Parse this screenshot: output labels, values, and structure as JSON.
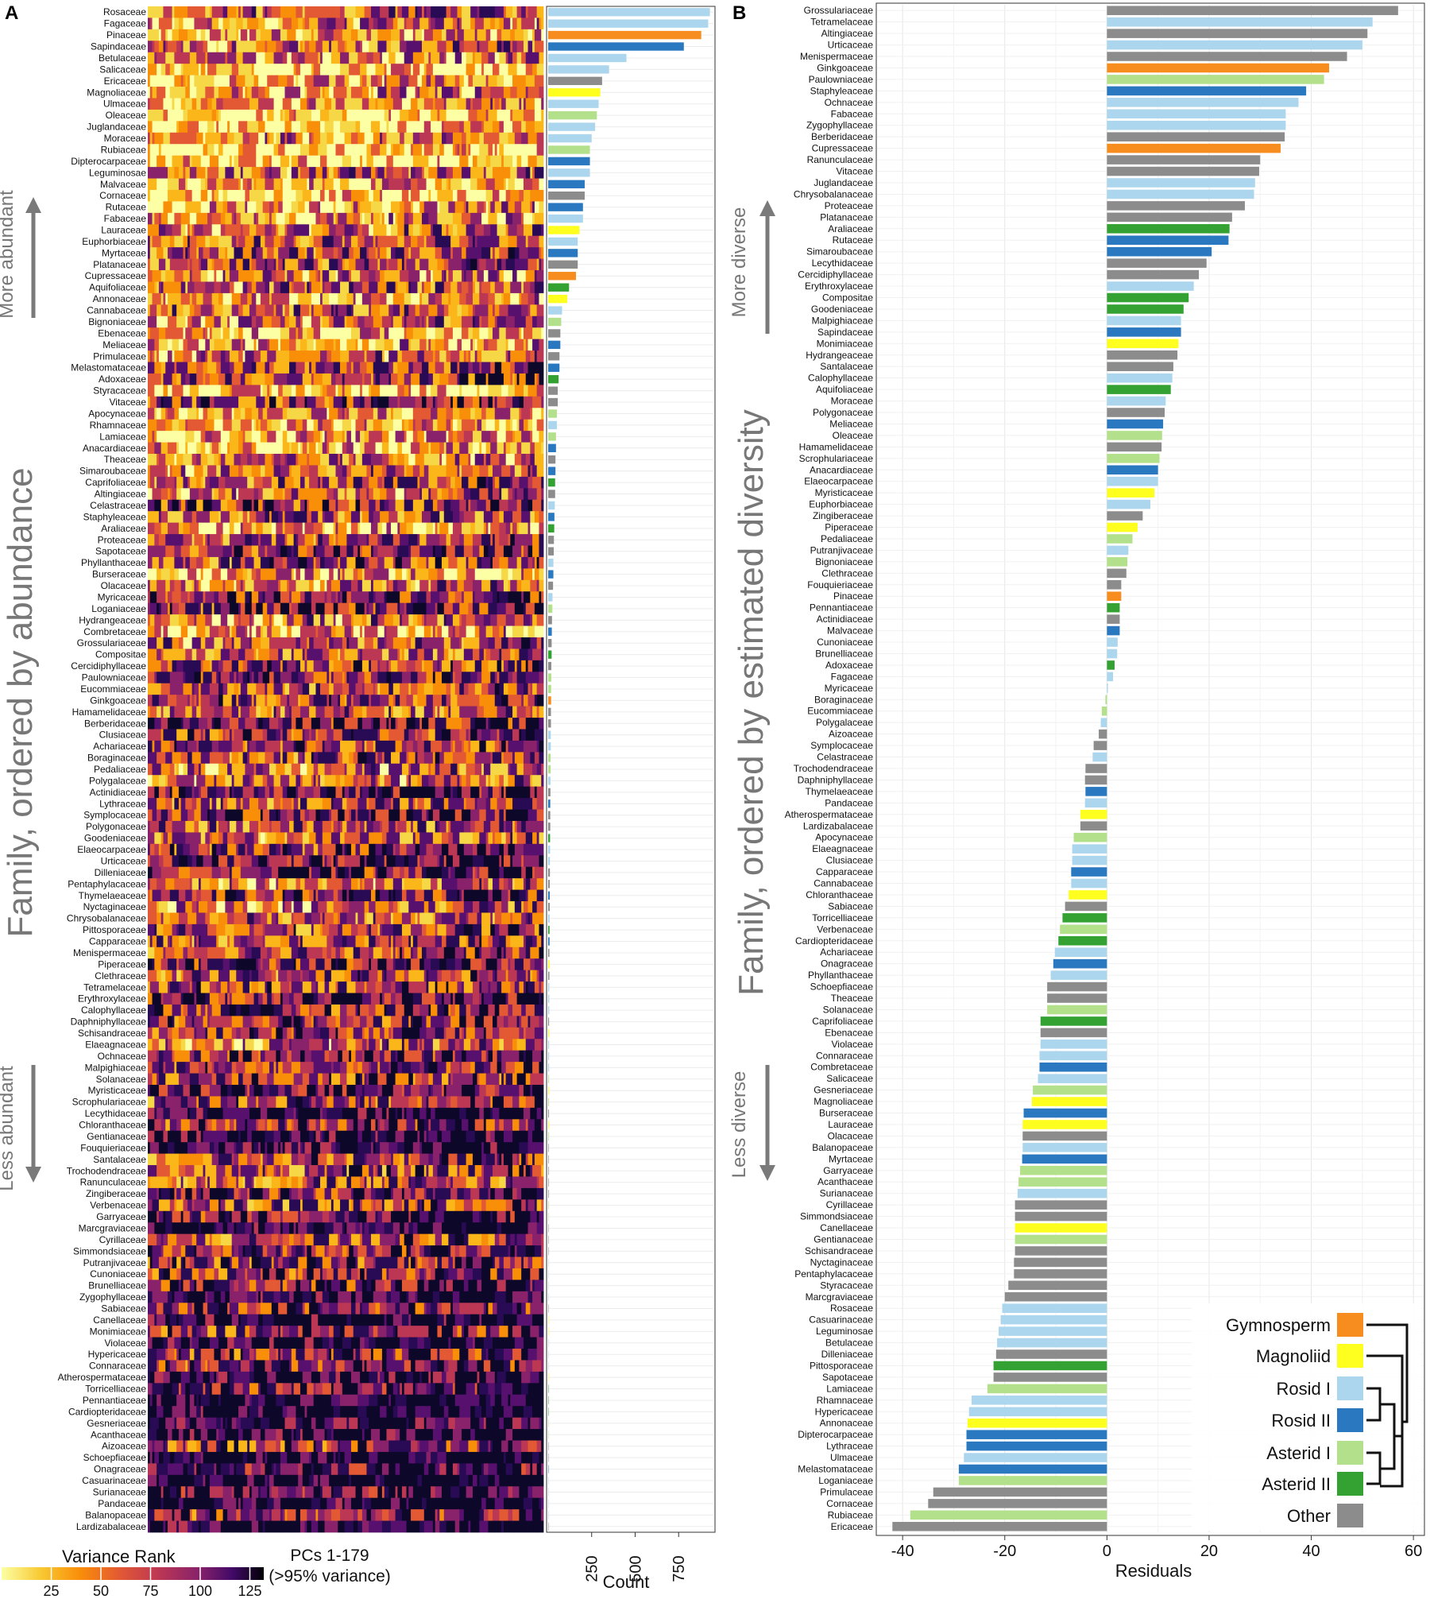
{
  "colors": {
    "Gymnosperm": "#f78d1e",
    "Magnoliid": "#ffff1f",
    "Rosid I": "#acd6ee",
    "Rosid II": "#2a78c0",
    "Asterid I": "#b3e08b",
    "Asterid II": "#34a232",
    "Other": "#8c8c8c"
  },
  "panelA": {
    "label": "A",
    "y_axis_title": "Family, ordered by abundance",
    "more_label": "More abundant",
    "less_label": "Less abundant",
    "x_axis_label": "PCs 1-179",
    "count_label": "Count",
    "count_ticks": [
      "250",
      "500",
      "750"
    ],
    "colorbar_title": "Variance Rank",
    "colorbar_ticks": [
      "25",
      "50",
      "75",
      "100",
      "125"
    ],
    "colorbar_note": "(>95% variance)"
  },
  "panelB": {
    "label": "B",
    "y_axis_title": "Family, ordered by estimated diversity",
    "more_label": "More diverse",
    "less_label": "Less diverse",
    "x_axis_label": "Residuals",
    "x_ticks": [
      "-40",
      "-20",
      "0",
      "20",
      "40",
      "60"
    ]
  },
  "legend": [
    "Gymnosperm",
    "Magnoliid",
    "Rosid I",
    "Rosid II",
    "Asterid I",
    "Asterid II",
    "Other"
  ],
  "chart_data": [
    {
      "type": "bar",
      "panel": "A",
      "orientation": "horizontal",
      "xlabel": "Count",
      "xlim": [
        0,
        950
      ],
      "categories": [
        "Rosaceae",
        "Fagaceae",
        "Pinaceae",
        "Sapindaceae",
        "Betulaceae",
        "Salicaceae",
        "Ericaceae",
        "Magnoliaceae",
        "Ulmaceae",
        "Oleaceae",
        "Juglandaceae",
        "Moraceae",
        "Rubiaceae",
        "Dipterocarpaceae",
        "Leguminosae",
        "Malvaceae",
        "Cornaceae",
        "Rutaceae",
        "Fabaceae",
        "Lauraceae",
        "Euphorbiaceae",
        "Myrtaceae",
        "Platanaceae",
        "Cupressaceae",
        "Aquifoliaceae",
        "Annonaceae",
        "Cannabaceae",
        "Bignoniaceae",
        "Ebenaceae",
        "Meliaceae",
        "Primulaceae",
        "Melastomataceae",
        "Adoxaceae",
        "Styracaceae",
        "Vitaceae",
        "Apocynaceae",
        "Rhamnaceae",
        "Lamiaceae",
        "Anacardiaceae",
        "Theaceae",
        "Simaroubaceae",
        "Caprifoliaceae",
        "Altingiaceae",
        "Celastraceae",
        "Staphyleaceae",
        "Araliaceae",
        "Proteaceae",
        "Sapotaceae",
        "Phyllanthaceae",
        "Burseraceae",
        "Olacaceae",
        "Myricaceae",
        "Loganiaceae",
        "Hydrangeaceae",
        "Combretaceae",
        "Grossulariaceae",
        "Compositae",
        "Cercidiphyllaceae",
        "Paulowniaceae",
        "Eucommiaceae",
        "Ginkgoaceae",
        "Hamamelidaceae",
        "Berberidaceae",
        "Clusiaceae",
        "Achariaceae",
        "Boraginaceae",
        "Pedaliaceae",
        "Polygalaceae",
        "Actinidiaceae",
        "Lythraceae",
        "Symplocaceae",
        "Polygonaceae",
        "Goodeniaceae",
        "Elaeocarpaceae",
        "Urticaceae",
        "Dilleniaceae",
        "Pentaphylacaceae",
        "Thymelaeaceae",
        "Nyctaginaceae",
        "Chrysobalanaceae",
        "Pittosporaceae",
        "Capparaceae",
        "Menispermaceae",
        "Piperaceae",
        "Clethraceae",
        "Tetramelaceae",
        "Erythroxylaceae",
        "Calophyllaceae",
        "Daphniphyllaceae",
        "Schisandraceae",
        "Elaeagnaceae",
        "Ochnaceae",
        "Malpighiaceae",
        "Solanaceae",
        "Myristicaceae",
        "Scrophulariaceae",
        "Lecythidaceae",
        "Chloranthaceae",
        "Gentianaceae",
        "Fouquieriaceae",
        "Santalaceae",
        "Trochodendraceae",
        "Ranunculaceae",
        "Zingiberaceae",
        "Verbenaceae",
        "Garryaceae",
        "Marcgraviaceae",
        "Cyrillaceae",
        "Simmondsiaceae",
        "Putranjivaceae",
        "Cunoniaceae",
        "Brunelliaceae",
        "Zygophyllaceae",
        "Sabiaceae",
        "Canellaceae",
        "Monimiaceae",
        "Violaceae",
        "Hypericaceae",
        "Connaraceae",
        "Atherospermataceae",
        "Torricelliaceae",
        "Pennantiaceae",
        "Cardiopteridaceae",
        "Gesneriaceae",
        "Acanthaceae",
        "Aizoaceae",
        "Schoepfiaceae",
        "Onagraceae",
        "Casuarinaceae",
        "Surianaceae",
        "Pandaceae",
        "Balanopaceae",
        "Lardizabalaceae"
      ],
      "values": [
        930,
        920,
        880,
        780,
        450,
        350,
        310,
        300,
        290,
        280,
        270,
        250,
        240,
        240,
        240,
        210,
        210,
        200,
        200,
        180,
        170,
        170,
        170,
        160,
        120,
        110,
        80,
        75,
        70,
        70,
        65,
        65,
        60,
        55,
        55,
        50,
        50,
        45,
        45,
        42,
        42,
        40,
        40,
        38,
        36,
        35,
        33,
        32,
        30,
        30,
        28,
        25,
        24,
        22,
        21,
        20,
        20,
        18,
        18,
        17,
        17,
        16,
        16,
        15,
        15,
        14,
        14,
        13,
        13,
        12,
        12,
        12,
        11,
        11,
        10,
        10,
        9,
        9,
        9,
        8,
        8,
        8,
        7,
        7,
        7,
        6,
        6,
        6,
        5,
        5,
        5,
        5,
        5,
        4,
        4,
        4,
        4,
        4,
        4,
        3,
        3,
        3,
        3,
        3,
        3,
        2,
        2,
        2,
        2,
        2,
        2,
        2,
        2,
        2,
        2,
        2,
        1,
        1,
        1,
        1,
        1,
        1,
        1,
        1,
        1,
        1,
        1,
        1,
        1,
        1,
        1,
        1,
        1
      ],
      "groups": [
        "Rosid I",
        "Rosid I",
        "Gymnosperm",
        "Rosid II",
        "Rosid I",
        "Rosid I",
        "Other",
        "Magnoliid",
        "Rosid I",
        "Asterid I",
        "Rosid I",
        "Rosid I",
        "Asterid I",
        "Rosid II",
        "Rosid I",
        "Rosid II",
        "Other",
        "Rosid II",
        "Rosid I",
        "Magnoliid",
        "Rosid I",
        "Rosid II",
        "Other",
        "Gymnosperm",
        "Asterid II",
        "Magnoliid",
        "Rosid I",
        "Asterid I",
        "Other",
        "Rosid II",
        "Other",
        "Rosid II",
        "Asterid II",
        "Other",
        "Other",
        "Asterid I",
        "Rosid I",
        "Asterid I",
        "Rosid II",
        "Other",
        "Rosid II",
        "Asterid II",
        "Other",
        "Rosid I",
        "Rosid II",
        "Asterid II",
        "Other",
        "Other",
        "Rosid I",
        "Rosid II",
        "Other",
        "Rosid I",
        "Asterid I",
        "Other",
        "Rosid II",
        "Other",
        "Asterid II",
        "Other",
        "Asterid I",
        "Asterid I",
        "Gymnosperm",
        "Other",
        "Other",
        "Rosid I",
        "Rosid I",
        "Asterid I",
        "Asterid I",
        "Rosid I",
        "Other",
        "Rosid II",
        "Other",
        "Other",
        "Asterid II",
        "Rosid I",
        "Rosid I",
        "Other",
        "Other",
        "Rosid II",
        "Other",
        "Rosid I",
        "Asterid II",
        "Rosid II",
        "Other",
        "Magnoliid",
        "Other",
        "Rosid I",
        "Rosid I",
        "Rosid I",
        "Other",
        "Magnoliid",
        "Rosid I",
        "Rosid I",
        "Rosid I",
        "Asterid I",
        "Magnoliid",
        "Asterid I",
        "Other",
        "Magnoliid",
        "Asterid I",
        "Other",
        "Other",
        "Other",
        "Other",
        "Other",
        "Asterid I",
        "Asterid I",
        "Other",
        "Other",
        "Other",
        "Rosid I",
        "Rosid I",
        "Rosid I",
        "Rosid I",
        "Other",
        "Magnoliid",
        "Magnoliid",
        "Rosid I",
        "Rosid I",
        "Rosid I",
        "Magnoliid",
        "Asterid II",
        "Asterid II",
        "Asterid II",
        "Asterid I",
        "Asterid I",
        "Other",
        "Other",
        "Rosid II",
        "Rosid I",
        "Rosid I",
        "Rosid I",
        "Rosid I",
        "Other"
      ]
    },
    {
      "type": "bar",
      "panel": "B",
      "orientation": "horizontal",
      "xlabel": "Residuals",
      "xlim": [
        -45,
        62
      ],
      "categories": [
        "Grossulariaceae",
        "Tetramelaceae",
        "Altingiaceae",
        "Urticaceae",
        "Menispermaceae",
        "Ginkgoaceae",
        "Paulowniaceae",
        "Staphyleaceae",
        "Ochnaceae",
        "Fabaceae",
        "Zygophyllaceae",
        "Berberidaceae",
        "Cupressaceae",
        "Ranunculaceae",
        "Vitaceae",
        "Juglandaceae",
        "Chrysobalanaceae",
        "Proteaceae",
        "Platanaceae",
        "Araliaceae",
        "Rutaceae",
        "Simaroubaceae",
        "Lecythidaceae",
        "Cercidiphyllaceae",
        "Erythroxylaceae",
        "Compositae",
        "Goodeniaceae",
        "Malpighiaceae",
        "Sapindaceae",
        "Monimiaceae",
        "Hydrangeaceae",
        "Santalaceae",
        "Calophyllaceae",
        "Aquifoliaceae",
        "Moraceae",
        "Polygonaceae",
        "Meliaceae",
        "Oleaceae",
        "Hamamelidaceae",
        "Scrophulariaceae",
        "Anacardiaceae",
        "Elaeocarpaceae",
        "Myristicaceae",
        "Euphorbiaceae",
        "Zingiberaceae",
        "Piperaceae",
        "Pedaliaceae",
        "Putranjivaceae",
        "Bignoniaceae",
        "Clethraceae",
        "Fouquieriaceae",
        "Pinaceae",
        "Pennantiaceae",
        "Actinidiaceae",
        "Malvaceae",
        "Cunoniaceae",
        "Brunelliaceae",
        "Adoxaceae",
        "Fagaceae",
        "Myricaceae",
        "Boraginaceae",
        "Eucommiaceae",
        "Polygalaceae",
        "Aizoaceae",
        "Symplocaceae",
        "Celastraceae",
        "Trochodendraceae",
        "Daphniphyllaceae",
        "Thymelaeaceae",
        "Pandaceae",
        "Atherospermataceae",
        "Lardizabalaceae",
        "Apocynaceae",
        "Elaeagnaceae",
        "Clusiaceae",
        "Capparaceae",
        "Cannabaceae",
        "Chloranthaceae",
        "Sabiaceae",
        "Torricelliaceae",
        "Verbenaceae",
        "Cardiopteridaceae",
        "Achariaceae",
        "Onagraceae",
        "Phyllanthaceae",
        "Schoepfiaceae",
        "Theaceae",
        "Solanaceae",
        "Caprifoliaceae",
        "Ebenaceae",
        "Violaceae",
        "Connaraceae",
        "Combretaceae",
        "Salicaceae",
        "Gesneriaceae",
        "Magnoliaceae",
        "Burseraceae",
        "Lauraceae",
        "Olacaceae",
        "Balanopaceae",
        "Myrtaceae",
        "Garryaceae",
        "Acanthaceae",
        "Surianaceae",
        "Cyrillaceae",
        "Simmondsiaceae",
        "Canellaceae",
        "Gentianaceae",
        "Schisandraceae",
        "Nyctaginaceae",
        "Pentaphylacaceae",
        "Styracaceae",
        "Marcgraviaceae",
        "Rosaceae",
        "Casuarinaceae",
        "Leguminosae",
        "Betulaceae",
        "Dilleniaceae",
        "Pittosporaceae",
        "Sapotaceae",
        "Lamiaceae",
        "Rhamnaceae",
        "Hypericaceae",
        "Annonaceae",
        "Dipterocarpaceae",
        "Lythraceae",
        "Ulmaceae",
        "Melastomataceae",
        "Loganiaceae",
        "Primulaceae",
        "Cornaceae",
        "Rubiaceae",
        "Ericaceae"
      ],
      "values": [
        57,
        52,
        51,
        50,
        47,
        43.5,
        42.5,
        39,
        37.5,
        35,
        35,
        34.8,
        34,
        30,
        29.8,
        29,
        28.8,
        27,
        24.5,
        24,
        23.8,
        20.5,
        19.5,
        18,
        17,
        16,
        15,
        14.5,
        14.5,
        14,
        13.8,
        13,
        12.8,
        12.5,
        11.5,
        11.3,
        11,
        10.8,
        10.7,
        10.3,
        10,
        10,
        9.3,
        8.5,
        7,
        6,
        5,
        4.2,
        4,
        3.8,
        2.8,
        2.8,
        2.5,
        2.5,
        2.5,
        2.1,
        2,
        1.5,
        1.2,
        0.2,
        -0.3,
        -1,
        -1.2,
        -1.6,
        -2.6,
        -2.8,
        -4.2,
        -4.3,
        -4.2,
        -4.3,
        -5.2,
        -5.2,
        -6.5,
        -6.8,
        -6.8,
        -7,
        -7,
        -7.5,
        -8.2,
        -8.7,
        -9.2,
        -9.5,
        -10.2,
        -10.5,
        -11,
        -11.7,
        -11.7,
        -11.7,
        -13,
        -13,
        -13,
        -13.2,
        -13.2,
        -13.5,
        -14.5,
        -14.7,
        -16.3,
        -16.5,
        -16.5,
        -16.5,
        -16.6,
        -17,
        -17.3,
        -17.5,
        -18,
        -18,
        -18,
        -18,
        -18,
        -18.2,
        -18.2,
        -19.3,
        -20,
        -20.5,
        -20.8,
        -21.2,
        -21.5,
        -21.7,
        -22.2,
        -22.2,
        -23.4,
        -26.5,
        -27,
        -27.3,
        -27.5,
        -27.5,
        -28,
        -29,
        -29,
        -34,
        -35,
        -38.5,
        -42
      ],
      "groups": [
        "Other",
        "Rosid I",
        "Other",
        "Rosid I",
        "Other",
        "Gymnosperm",
        "Asterid I",
        "Rosid II",
        "Rosid I",
        "Rosid I",
        "Rosid I",
        "Other",
        "Gymnosperm",
        "Other",
        "Other",
        "Rosid I",
        "Rosid I",
        "Other",
        "Other",
        "Asterid II",
        "Rosid II",
        "Rosid II",
        "Other",
        "Other",
        "Rosid I",
        "Asterid II",
        "Asterid II",
        "Rosid I",
        "Rosid II",
        "Magnoliid",
        "Other",
        "Other",
        "Rosid I",
        "Asterid II",
        "Rosid I",
        "Other",
        "Rosid II",
        "Asterid I",
        "Other",
        "Asterid I",
        "Rosid II",
        "Rosid I",
        "Magnoliid",
        "Rosid I",
        "Other",
        "Magnoliid",
        "Asterid I",
        "Rosid I",
        "Asterid I",
        "Other",
        "Other",
        "Gymnosperm",
        "Asterid II",
        "Other",
        "Rosid II",
        "Rosid I",
        "Rosid I",
        "Asterid II",
        "Rosid I",
        "Rosid I",
        "Asterid I",
        "Asterid I",
        "Rosid I",
        "Other",
        "Other",
        "Rosid I",
        "Other",
        "Other",
        "Rosid II",
        "Rosid I",
        "Magnoliid",
        "Other",
        "Asterid I",
        "Rosid I",
        "Rosid I",
        "Rosid II",
        "Rosid I",
        "Magnoliid",
        "Other",
        "Asterid II",
        "Asterid I",
        "Asterid II",
        "Rosid I",
        "Rosid II",
        "Rosid I",
        "Other",
        "Other",
        "Asterid I",
        "Asterid II",
        "Other",
        "Rosid I",
        "Rosid I",
        "Rosid II",
        "Rosid I",
        "Asterid I",
        "Magnoliid",
        "Rosid II",
        "Magnoliid",
        "Other",
        "Rosid I",
        "Rosid II",
        "Asterid I",
        "Asterid I",
        "Rosid I",
        "Other",
        "Other",
        "Magnoliid",
        "Asterid I",
        "Other",
        "Other",
        "Other",
        "Other",
        "Other",
        "Rosid I",
        "Rosid I",
        "Rosid I",
        "Rosid I",
        "Other",
        "Asterid II",
        "Other",
        "Asterid I",
        "Rosid I",
        "Rosid I",
        "Magnoliid",
        "Rosid II",
        "Rosid II",
        "Rosid I",
        "Rosid II",
        "Asterid I",
        "Other",
        "Other",
        "Asterid I",
        "Other"
      ]
    }
  ]
}
